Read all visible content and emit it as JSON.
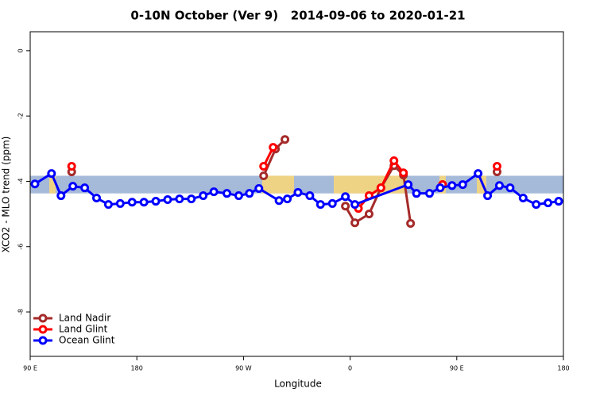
{
  "chart_data": {
    "type": "line",
    "title": "0-10N October (Ver 9)   2014-09-06 to 2020-01-21",
    "x_label": "Longitude",
    "y_label": "XCO2 - MLO trend (ppm)",
    "xlim": [
      90,
      540
    ],
    "xticks": [
      {
        "value": 90,
        "label": "90 E"
      },
      {
        "value": 180,
        "label": "180"
      },
      {
        "value": 270,
        "label": "90 W"
      },
      {
        "value": 360,
        "label": "0"
      },
      {
        "value": 450,
        "label": "90 E"
      },
      {
        "value": 540,
        "label": "180"
      }
    ],
    "ylim": [
      -9.36,
      0.58
    ],
    "yticks": [
      0,
      -2,
      -4,
      -6,
      -8
    ],
    "band": [
      -4.37,
      -3.83
    ],
    "band_color": "#a5b9d9",
    "legend": "bottomleft",
    "series": [
      {
        "name": "Land Nadir",
        "color": "#a52a2a",
        "x": [
          125,
          200,
          287,
          297,
          305,
          330,
          356,
          364,
          376,
          386,
          397,
          405,
          411,
          425,
          438,
          460,
          484
        ],
        "values": [
          -3.71,
          null,
          -3.83,
          -3.01,
          -2.72,
          null,
          -4.76,
          -5.27,
          -5.0,
          -4.2,
          -3.52,
          -3.81,
          -5.29,
          null,
          -4.1,
          null,
          -3.71
        ]
      },
      {
        "name": "Land Glint",
        "color": "#ff0000",
        "x": [
          125,
          200,
          287,
          295,
          330,
          367,
          376,
          386,
          397,
          405,
          420,
          438,
          460,
          484
        ],
        "values": [
          -3.54,
          null,
          -3.54,
          -2.96,
          null,
          -4.83,
          -4.44,
          -4.2,
          -3.37,
          -3.74,
          null,
          -4.1,
          null,
          -3.54
        ]
      },
      {
        "name": "Ocean Glint",
        "color": "#0000ff",
        "x": [
          94,
          108,
          116,
          126,
          136,
          146,
          156,
          166,
          176,
          186,
          196,
          206,
          216,
          226,
          236,
          245,
          256,
          266,
          275,
          283,
          300,
          307,
          316,
          326,
          335,
          345,
          356,
          364,
          409,
          416,
          427,
          436,
          446,
          455,
          468,
          476,
          486,
          495,
          506,
          517,
          527,
          536
        ],
        "values": [
          -4.08,
          -3.76,
          -4.44,
          -4.15,
          -4.2,
          -4.51,
          -4.71,
          -4.68,
          -4.64,
          -4.64,
          -4.61,
          -4.56,
          -4.54,
          -4.54,
          -4.44,
          -4.32,
          -4.37,
          -4.44,
          -4.37,
          -4.22,
          -4.59,
          -4.54,
          -4.34,
          -4.44,
          -4.71,
          -4.68,
          -4.47,
          -4.71,
          -4.1,
          -4.37,
          -4.37,
          -4.2,
          -4.13,
          -4.1,
          -3.76,
          -4.44,
          -4.13,
          -4.2,
          -4.51,
          -4.71,
          -4.66,
          -4.61
        ]
      }
    ]
  }
}
